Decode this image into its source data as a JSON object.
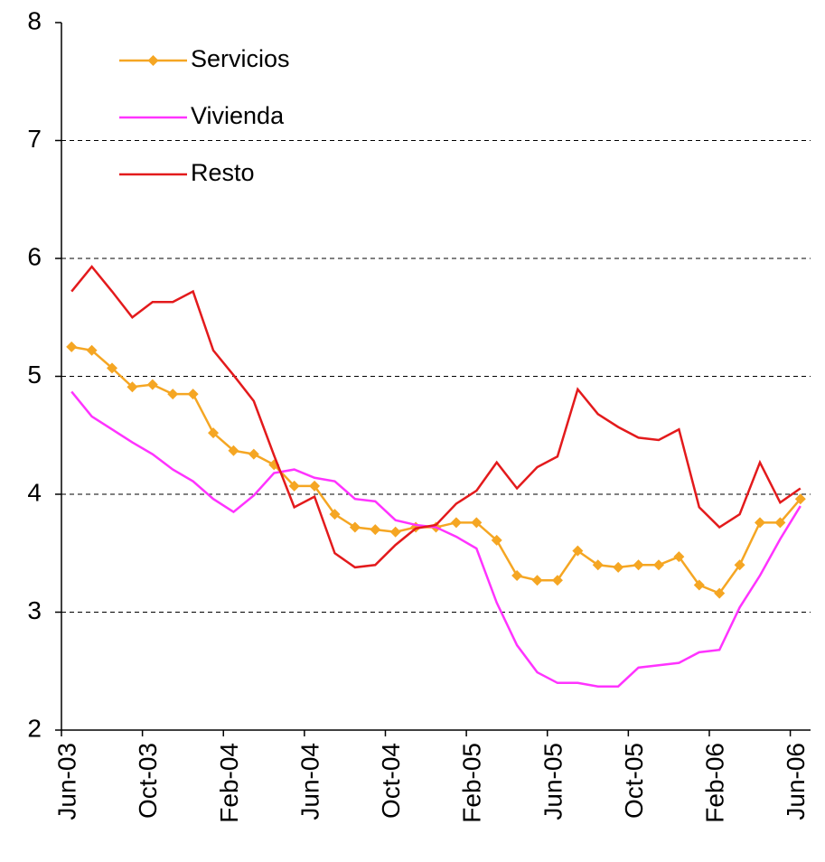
{
  "chart_data": {
    "type": "line",
    "categories": [
      "Jun-03",
      null,
      null,
      null,
      "Oct-03",
      null,
      null,
      null,
      "Feb-04",
      null,
      null,
      null,
      "Jun-04",
      null,
      null,
      null,
      "Oct-04",
      null,
      null,
      null,
      "Feb-05",
      null,
      null,
      null,
      "Jun-05",
      null,
      null,
      null,
      "Oct-05",
      null,
      null,
      null,
      "Feb-06",
      null,
      null,
      null,
      "Jun-06"
    ],
    "series": [
      {
        "name": "Servicios",
        "color": "#f5a623",
        "marker": "diamond",
        "values": [
          5.25,
          5.22,
          5.07,
          4.91,
          4.93,
          4.85,
          4.85,
          4.52,
          4.37,
          4.34,
          4.25,
          4.07,
          4.07,
          3.83,
          3.72,
          3.7,
          3.68,
          3.72,
          3.72,
          3.76,
          3.76,
          3.61,
          3.31,
          3.27,
          3.27,
          3.52,
          3.4,
          3.38,
          3.4,
          3.4,
          3.47,
          3.23,
          3.16,
          3.4,
          3.76,
          3.76,
          3.96
        ]
      },
      {
        "name": "Vivienda",
        "color": "#ff33ff",
        "values": [
          4.87,
          4.66,
          4.55,
          4.44,
          4.34,
          4.21,
          4.11,
          3.96,
          3.85,
          3.99,
          4.18,
          4.21,
          4.14,
          4.11,
          3.96,
          3.94,
          3.78,
          3.74,
          3.72,
          3.64,
          3.54,
          3.08,
          2.72,
          2.49,
          2.4,
          2.4,
          2.37,
          2.37,
          2.53,
          2.55,
          2.57,
          2.66,
          2.68,
          3.04,
          3.31,
          3.62,
          3.9
        ]
      },
      {
        "name": "Resto",
        "color": "#e31a1c",
        "values": [
          5.72,
          5.93,
          5.72,
          5.5,
          5.63,
          5.63,
          5.72,
          5.22,
          5.01,
          4.79,
          4.33,
          3.89,
          3.98,
          3.5,
          3.38,
          3.4,
          3.57,
          3.71,
          3.74,
          3.92,
          4.03,
          4.27,
          4.05,
          4.23,
          4.32,
          4.89,
          4.68,
          4.57,
          4.48,
          4.46,
          4.55,
          3.89,
          3.72,
          3.83,
          4.27,
          3.93,
          4.05
        ]
      }
    ],
    "ylim": [
      2,
      8
    ],
    "yticks": [
      2,
      3,
      4,
      5,
      6,
      7,
      8
    ],
    "grid": true,
    "legend": "top-left"
  }
}
